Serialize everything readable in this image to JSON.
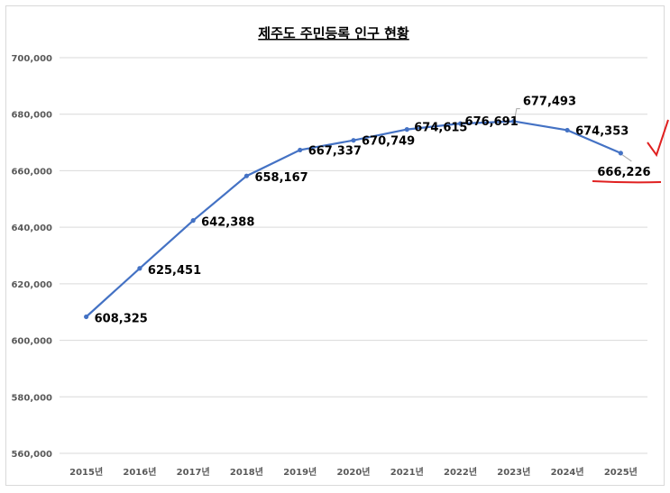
{
  "chart_data": {
    "type": "line",
    "title": "제주도 주민등록 인구 현황",
    "xlabel": "",
    "ylabel": "",
    "categories": [
      "2015년",
      "2016년",
      "2017년",
      "2018년",
      "2019년",
      "2020년",
      "2021년",
      "2022년",
      "2023년",
      "2024년",
      "2025년"
    ],
    "series": [
      {
        "values": [
          608325,
          625451,
          642388,
          658167,
          667337,
          670749,
          674615,
          676691,
          677493,
          674353,
          666226
        ],
        "color": "#4472c4"
      }
    ],
    "data_labels": [
      "608,325",
      "625,451",
      "642,388",
      "658,167",
      "667,337",
      "670,749",
      "674,615",
      "676,691",
      "677,493",
      "674,353",
      "666,226"
    ],
    "ylim": [
      560000,
      700000
    ],
    "yticks": [
      560000,
      580000,
      600000,
      620000,
      640000,
      660000,
      680000,
      700000
    ],
    "ytick_labels": [
      "560,000",
      "580,000",
      "600,000",
      "620,000",
      "640,000",
      "660,000",
      "680,000",
      "700,000"
    ],
    "grid": true,
    "legend": "none",
    "annotation_color": "#e02020"
  }
}
